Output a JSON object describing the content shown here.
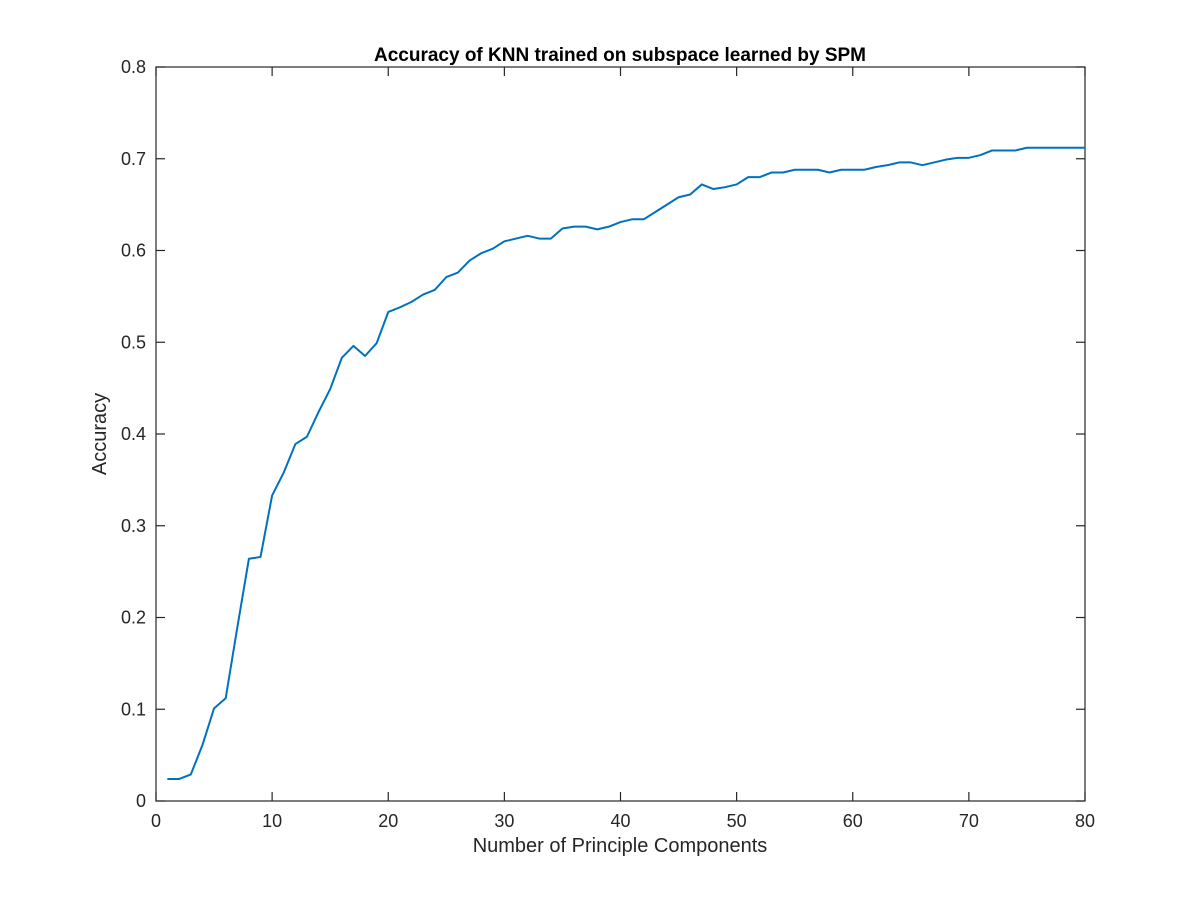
{
  "chart_data": {
    "type": "line",
    "title": "Accuracy of KNN trained on subspace learned by SPM",
    "xlabel": "Number of Principle Components",
    "ylabel": "Accuracy",
    "xlim": [
      0,
      80
    ],
    "ylim": [
      0,
      0.8
    ],
    "xticks": [
      0,
      10,
      20,
      30,
      40,
      50,
      60,
      70,
      80
    ],
    "xtick_labels": [
      "0",
      "10",
      "20",
      "30",
      "40",
      "50",
      "60",
      "70",
      "80"
    ],
    "yticks": [
      0,
      0.1,
      0.2,
      0.3,
      0.4,
      0.5,
      0.6,
      0.7,
      0.8
    ],
    "ytick_labels": [
      "0",
      "0.1",
      "0.2",
      "0.3",
      "0.4",
      "0.5",
      "0.6",
      "0.7",
      "0.8"
    ],
    "grid": false,
    "legend": "none",
    "line_color": "#0072BD",
    "series": [
      {
        "x": [
          1,
          2,
          3,
          4,
          5,
          6,
          7,
          8,
          9,
          10,
          11,
          12,
          13,
          14,
          15,
          16,
          17,
          18,
          19,
          20,
          21,
          22,
          23,
          24,
          25,
          26,
          27,
          28,
          29,
          30,
          31,
          32,
          33,
          34,
          35,
          36,
          37,
          38,
          39,
          40,
          41,
          42,
          43,
          44,
          45,
          46,
          47,
          48,
          49,
          50,
          51,
          52,
          53,
          54,
          55,
          56,
          57,
          58,
          59,
          60,
          61,
          62,
          63,
          64,
          65,
          66,
          67,
          68,
          69,
          70,
          71,
          72,
          73,
          74,
          75,
          76,
          77,
          78,
          79,
          80
        ],
        "values": [
          0.024,
          0.024,
          0.029,
          0.061,
          0.101,
          0.112,
          0.189,
          0.264,
          0.266,
          0.333,
          0.358,
          0.389,
          0.397,
          0.424,
          0.449,
          0.483,
          0.496,
          0.485,
          0.499,
          0.533,
          0.538,
          0.544,
          0.552,
          0.557,
          0.571,
          0.576,
          0.589,
          0.597,
          0.602,
          0.61,
          0.613,
          0.616,
          0.613,
          0.613,
          0.624,
          0.626,
          0.626,
          0.623,
          0.626,
          0.631,
          0.634,
          0.634,
          0.642,
          0.65,
          0.658,
          0.661,
          0.672,
          0.667,
          0.669,
          0.672,
          0.68,
          0.68,
          0.685,
          0.685,
          0.688,
          0.688,
          0.688,
          0.685,
          0.688,
          0.688,
          0.688,
          0.691,
          0.693,
          0.696,
          0.696,
          0.693,
          0.696,
          0.699,
          0.701,
          0.701,
          0.704,
          0.709,
          0.709,
          0.709,
          0.712,
          0.712,
          0.712,
          0.712,
          0.712,
          0.712
        ]
      }
    ]
  }
}
